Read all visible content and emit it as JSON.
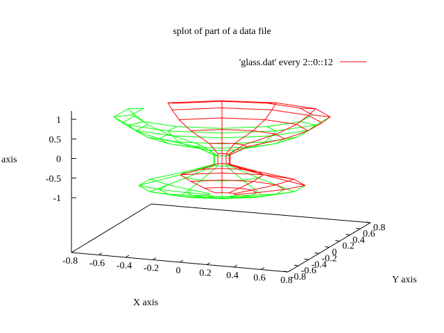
{
  "chart_data": {
    "type": "surface",
    "title": "splot of part of a data file",
    "xlabel": "X axis",
    "ylabel": "Y axis",
    "zlabel": "axis",
    "xlim": [
      -0.8,
      0.8
    ],
    "ylim": [
      -0.8,
      0.8
    ],
    "zlim": [
      -1,
      1
    ],
    "x_ticks": [
      "-0.8",
      "-0.6",
      "-0.4",
      "-0.2",
      "0",
      "0.2",
      "0.4",
      "0.6",
      "0.8"
    ],
    "y_ticks": [
      "-0.8",
      "-0.6",
      "-0.4",
      "-0.2",
      "0",
      "0.2",
      "0.4",
      "0.6",
      "0.8"
    ],
    "z_ticks": [
      "1",
      "0.5",
      "0",
      "-0.5",
      "-1"
    ],
    "legend": {
      "label": "'glass.dat' every 2::0::12",
      "color": "#ff0000",
      "position": "top-right"
    },
    "front_color": "#ff0000",
    "back_color": "#00ff00",
    "grid": false
  }
}
